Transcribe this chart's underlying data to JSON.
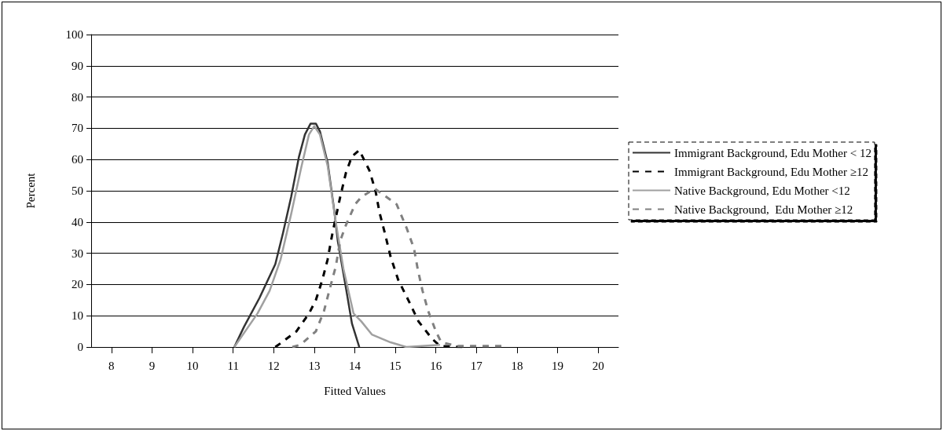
{
  "chart_data": {
    "type": "line",
    "xlabel": "Fitted Values",
    "ylabel": "Percent",
    "xlim": [
      7.5,
      20.5
    ],
    "xticks": [
      8,
      9,
      10,
      11,
      12,
      13,
      14,
      15,
      16,
      17,
      18,
      19,
      20
    ],
    "ylim": [
      0,
      100
    ],
    "yticks": [
      0,
      10,
      20,
      30,
      40,
      50,
      60,
      70,
      80,
      90,
      100
    ],
    "grid": "y",
    "legend": "right",
    "marker": "none",
    "series": [
      {
        "name": "Immigrant Background, Edu Mother < 12",
        "color": "#333333",
        "line_style": "solid",
        "x": [
          11.03,
          11.27,
          11.65,
          12.04,
          12.23,
          12.43,
          12.62,
          12.77,
          12.91,
          13.04,
          13.14,
          13.33,
          13.49,
          13.58,
          13.78,
          13.93,
          14.11
        ],
        "values": [
          0,
          6.5,
          15.7,
          26.5,
          36.5,
          48,
          60.7,
          68,
          71.5,
          71.5,
          69,
          59,
          44,
          34,
          19,
          7.5,
          0
        ]
      },
      {
        "name": "Immigrant Background, Edu Mother ≥12",
        "color": "#000000",
        "line_style": "dashed",
        "x": [
          12.04,
          12.17,
          12.56,
          12.87,
          13.04,
          13.2,
          13.33,
          13.45,
          13.64,
          13.78,
          13.93,
          14.11,
          14.36,
          14.51,
          14.61,
          14.74,
          14.88,
          15.07,
          15.32,
          15.57,
          15.9,
          16.1,
          16.67
        ],
        "values": [
          0,
          1.2,
          5,
          10.7,
          15,
          21.5,
          28,
          36.5,
          48,
          55.7,
          61,
          63,
          56.5,
          50,
          43,
          36.5,
          29,
          21.5,
          15,
          8.2,
          2.7,
          0.3,
          0
        ]
      },
      {
        "name": "Native Background, Edu Mother <12",
        "color": "#a0a0a0",
        "line_style": "solid",
        "x": [
          11.03,
          11.6,
          11.9,
          12.17,
          12.43,
          12.68,
          12.87,
          13.0,
          13.14,
          13.33,
          13.53,
          13.72,
          13.97,
          14.16,
          14.42,
          14.88,
          15.27,
          16.1
        ],
        "values": [
          0,
          10.7,
          18,
          28,
          42.5,
          57.5,
          68,
          70.7,
          68,
          58,
          40,
          25,
          10.7,
          8.2,
          4,
          1.5,
          0,
          0.7
        ]
      },
      {
        "name": "Native Background,  Edu Mother ≥12",
        "color": "#808080",
        "line_style": "dashed",
        "x": [
          12.46,
          12.66,
          13.04,
          13.24,
          13.39,
          13.53,
          13.64,
          13.78,
          14.01,
          14.16,
          14.49,
          15.03,
          15.28,
          15.46,
          15.55,
          15.67,
          15.81,
          16.0,
          16.13,
          16.54,
          17.1,
          17.64
        ],
        "values": [
          0,
          0.7,
          5,
          11.5,
          19,
          25.7,
          34,
          39,
          45.7,
          48,
          50.7,
          45.7,
          38,
          31.5,
          25,
          18,
          11.5,
          5,
          1.5,
          0.3,
          0.3,
          0.3
        ]
      }
    ]
  }
}
